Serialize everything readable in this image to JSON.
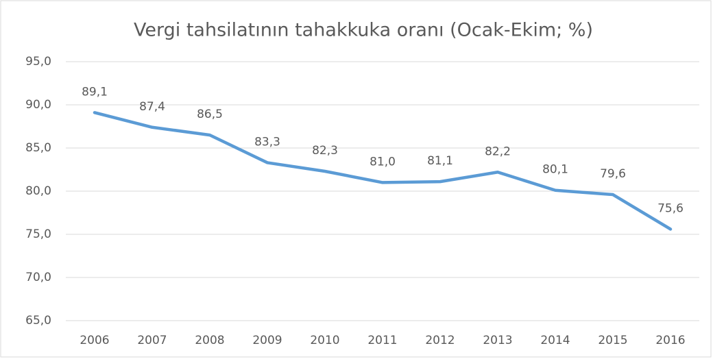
{
  "chart_data": {
    "type": "line",
    "title": "Vergi tahsilatının tahakkuka oranı (Ocak-Ekim; %)",
    "categories": [
      "2006",
      "2007",
      "2008",
      "2009",
      "2010",
      "2011",
      "2012",
      "2013",
      "2014",
      "2015",
      "2016"
    ],
    "series": [
      {
        "name": "Vergi tahsilatının tahakkuka oranı",
        "color": "#5b9bd5",
        "values": [
          89.1,
          87.4,
          86.5,
          83.3,
          82.3,
          81.0,
          81.1,
          82.2,
          80.1,
          79.6,
          75.6
        ],
        "value_labels": [
          "89,1",
          "87,4",
          "86,5",
          "83,3",
          "82,3",
          "81,0",
          "81,1",
          "82,2",
          "80,1",
          "79,6",
          "75,6"
        ]
      }
    ],
    "ylim": [
      65,
      95
    ],
    "yticks": [
      {
        "value": 65,
        "label": "65,0"
      },
      {
        "value": 70,
        "label": "70,0"
      },
      {
        "value": 75,
        "label": "75,0"
      },
      {
        "value": 80,
        "label": "80,0"
      },
      {
        "value": 85,
        "label": "85,0"
      },
      {
        "value": 90,
        "label": "90,0"
      },
      {
        "value": 95,
        "label": "95,0"
      }
    ],
    "grid": true
  }
}
